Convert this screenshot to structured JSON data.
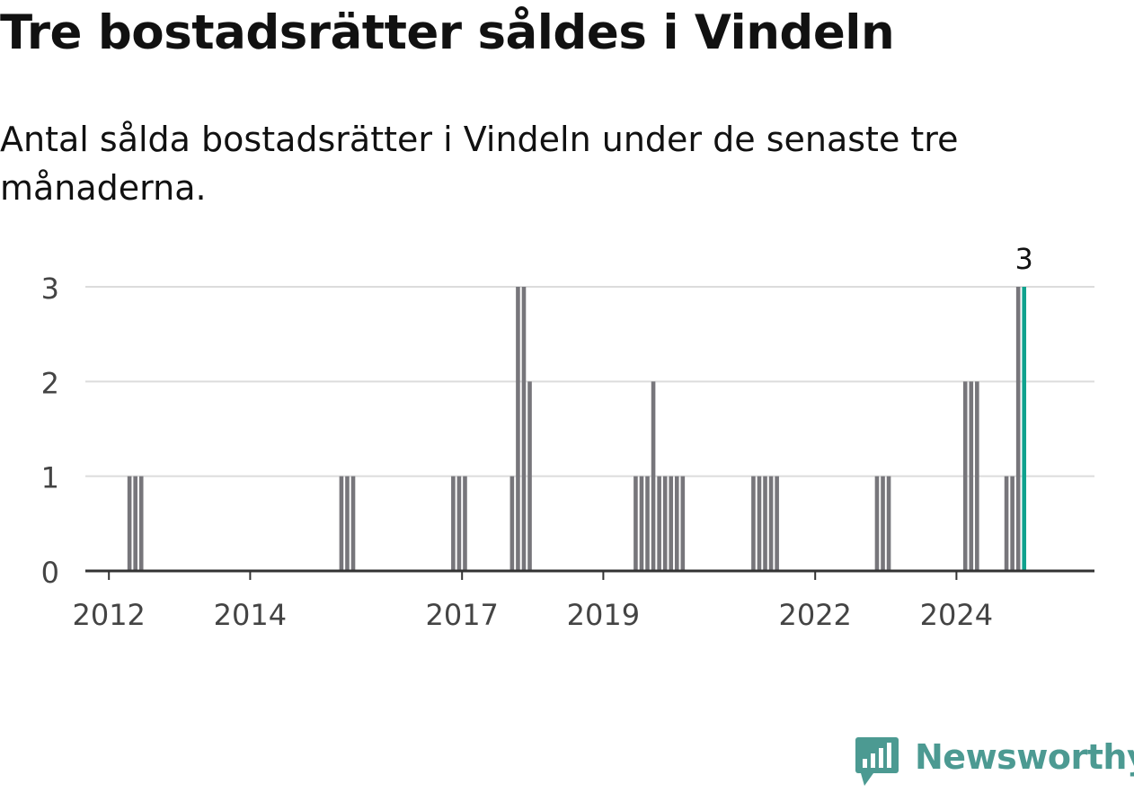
{
  "header": {
    "title": "Tre bostadsrätter såldes i Vindeln",
    "subtitle": "Antal sålda bostadsrätter i Vindeln under de senaste tre månaderna."
  },
  "brand": {
    "name": "Newsworthy",
    "logo_icon": "bar-chart-speech-bubble-icon",
    "color": "#4c9a92"
  },
  "colors": {
    "bar": "#77767b",
    "highlight": "#10a28e",
    "grid": "#dcdcdc",
    "axis": "#333333"
  },
  "chart_data": {
    "type": "bar",
    "x_axis": "monthly, 2011-09 to 2024-12",
    "ylim": [
      0,
      3
    ],
    "yticks": [
      0,
      1,
      2,
      3
    ],
    "xticks": [
      "2012",
      "2014",
      "2017",
      "2019",
      "2022",
      "2024"
    ],
    "grid": "horizontal",
    "highlight_label": "3",
    "bars": [
      {
        "date": "2012-04",
        "value": 1
      },
      {
        "date": "2012-05",
        "value": 1
      },
      {
        "date": "2012-06",
        "value": 1
      },
      {
        "date": "2015-04",
        "value": 1
      },
      {
        "date": "2015-05",
        "value": 1
      },
      {
        "date": "2015-06",
        "value": 1
      },
      {
        "date": "2016-11",
        "value": 1
      },
      {
        "date": "2016-12",
        "value": 1
      },
      {
        "date": "2017-01",
        "value": 1
      },
      {
        "date": "2017-09",
        "value": 1
      },
      {
        "date": "2017-10",
        "value": 3
      },
      {
        "date": "2017-11",
        "value": 3
      },
      {
        "date": "2017-12",
        "value": 2
      },
      {
        "date": "2019-06",
        "value": 1
      },
      {
        "date": "2019-07",
        "value": 1
      },
      {
        "date": "2019-08",
        "value": 1
      },
      {
        "date": "2019-09",
        "value": 2
      },
      {
        "date": "2019-10",
        "value": 1
      },
      {
        "date": "2019-11",
        "value": 1
      },
      {
        "date": "2019-12",
        "value": 1
      },
      {
        "date": "2020-01",
        "value": 1
      },
      {
        "date": "2020-02",
        "value": 1
      },
      {
        "date": "2021-02",
        "value": 1
      },
      {
        "date": "2021-03",
        "value": 1
      },
      {
        "date": "2021-04",
        "value": 1
      },
      {
        "date": "2021-05",
        "value": 1
      },
      {
        "date": "2021-06",
        "value": 1
      },
      {
        "date": "2022-11",
        "value": 1
      },
      {
        "date": "2022-12",
        "value": 1
      },
      {
        "date": "2023-01",
        "value": 1
      },
      {
        "date": "2024-02",
        "value": 2
      },
      {
        "date": "2024-03",
        "value": 2
      },
      {
        "date": "2024-04",
        "value": 2
      },
      {
        "date": "2024-09",
        "value": 1
      },
      {
        "date": "2024-10",
        "value": 1
      },
      {
        "date": "2024-11",
        "value": 3
      },
      {
        "date": "2024-12",
        "value": 3,
        "highlight": true
      }
    ]
  }
}
